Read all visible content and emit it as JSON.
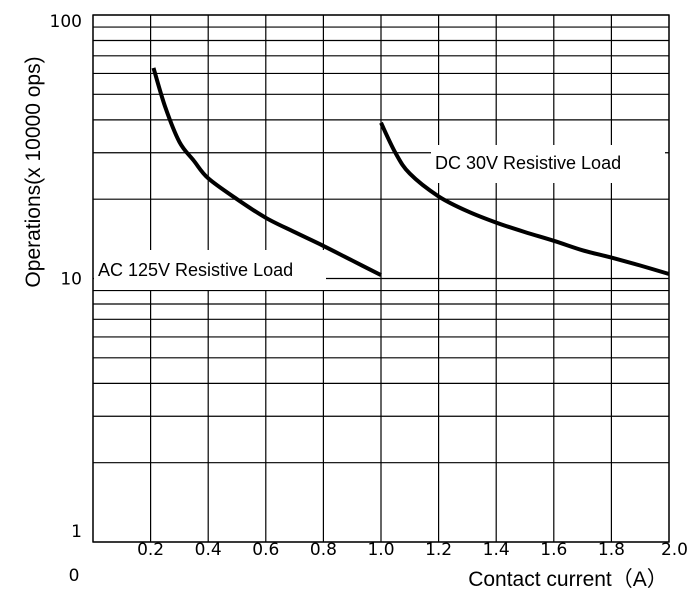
{
  "chart_data": {
    "type": "line",
    "title": "",
    "xlabel": "Contact current（A）",
    "ylabel": "Operations(x 10000 ops)",
    "xlim": [
      0,
      2.0
    ],
    "ylim": [
      1,
      100
    ],
    "yscale": "log",
    "grid": true,
    "x_tick_labels": [
      "0",
      "0.2",
      "0.4",
      "0.6",
      "0.8",
      "1.0",
      "1.2",
      "1.4",
      "1.6",
      "1.8",
      "2.0"
    ],
    "x_ticks": [
      0,
      0.2,
      0.4,
      0.6,
      0.8,
      1.0,
      1.2,
      1.4,
      1.6,
      1.8,
      2.0
    ],
    "y_tick_labels": [
      "1",
      "10",
      "100"
    ],
    "y_ticks": [
      1,
      10,
      100
    ],
    "series": [
      {
        "x": [
          0.21,
          0.25,
          0.3,
          0.35,
          0.4,
          0.5,
          0.6,
          0.7,
          0.8,
          0.9,
          1.0
        ],
        "values": [
          63,
          45,
          33,
          28,
          24,
          20,
          17,
          15,
          13.3,
          11.7,
          10.3
        ]
      },
      {
        "x": [
          1.0,
          1.05,
          1.1,
          1.2,
          1.3,
          1.4,
          1.5,
          1.6,
          1.7,
          1.8,
          1.9,
          2.0
        ],
        "values": [
          39,
          30,
          25,
          20.5,
          18,
          16.3,
          15,
          13.9,
          12.8,
          12,
          11.2,
          10.4
        ]
      }
    ],
    "annotations": [
      "AC 125V Resistive Load",
      "DC 30V Resistive Load"
    ]
  }
}
